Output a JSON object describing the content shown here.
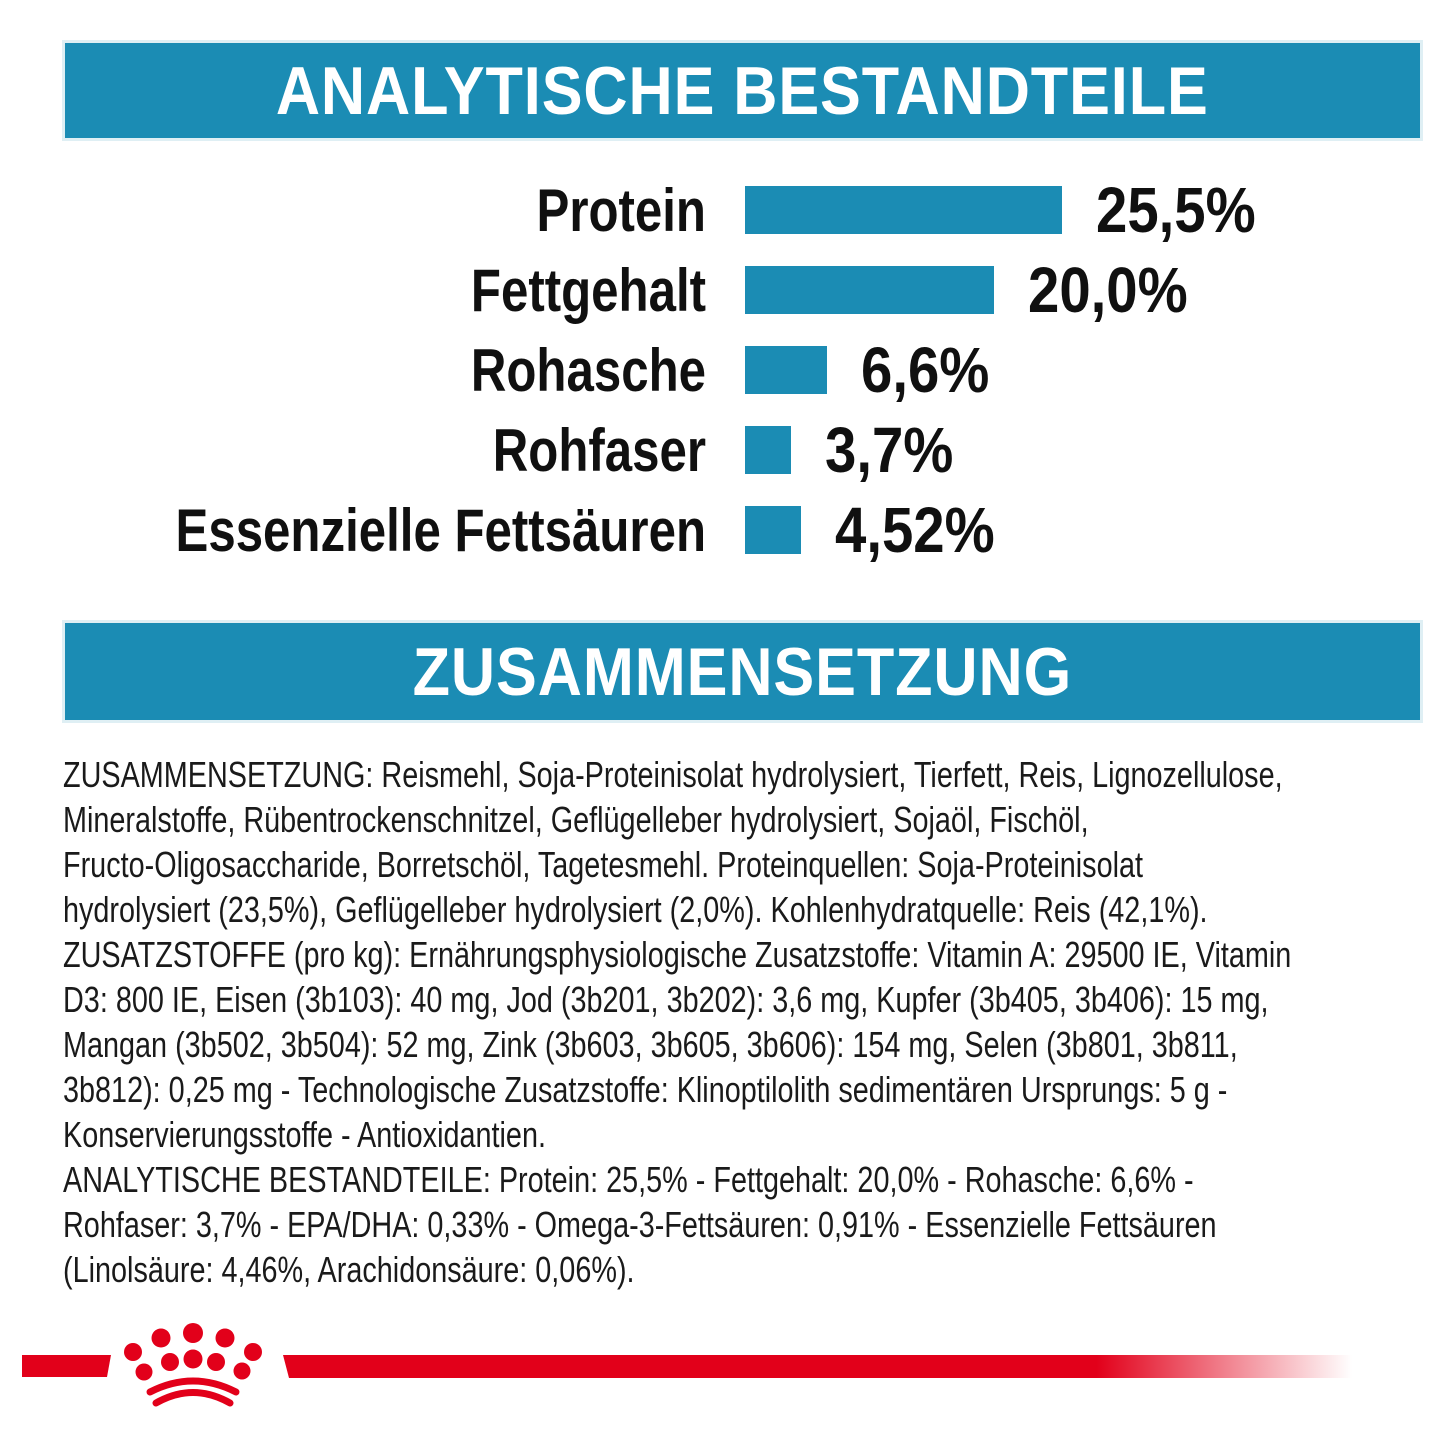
{
  "colors": {
    "teal": "#1b8cb4",
    "red": "#e2001a",
    "text": "#1a1a1a"
  },
  "banners": {
    "analytical": "ANALYTISCHE BESTANDTEILE",
    "composition": "ZUSAMMENSETZUNG"
  },
  "chart_data": {
    "type": "bar",
    "orientation": "horizontal",
    "title": "ANALYTISCHE BESTANDTEILE",
    "categories": [
      "Protein",
      "Fettgehalt",
      "Rohasche",
      "Rohfaser",
      "Essenzielle Fettsäuren"
    ],
    "values": [
      25.5,
      20.0,
      6.6,
      3.7,
      4.52
    ],
    "value_labels": [
      "25,5%",
      "20,0%",
      "6,6%",
      "3,7%",
      "4,52%"
    ],
    "unit": "%",
    "bar_color": "#1b8cb4",
    "axis": "none",
    "xlim": [
      0,
      30
    ],
    "grid": false,
    "legend": false
  },
  "composition_text": {
    "lines": [
      "ZUSAMMENSETZUNG: Reismehl, Soja-Proteinisolat hydrolysiert, Tierfett, Reis, Lignozellulose,",
      "Mineralstoffe, Rübentrockenschnitzel, Geflügelleber hydrolysiert, Sojaöl, Fischöl,",
      "Fructo-Oligosaccharide, Borretschöl, Tagetesmehl. Proteinquellen: Soja-Proteinisolat",
      "hydrolysiert (23,5%), Geflügelleber hydrolysiert (2,0%). Kohlenhydratquelle: Reis (42,1%).",
      "ZUSATZSTOFFE (pro kg): Ernährungsphysiologische Zusatzstoffe: Vitamin A: 29500 IE, Vitamin",
      "D3: 800 IE, Eisen (3b103): 40 mg, Jod (3b201, 3b202): 3,6 mg, Kupfer (3b405, 3b406): 15 mg,",
      "Mangan (3b502, 3b504): 52 mg, Zink (3b603, 3b605, 3b606): 154 mg, Selen (3b801, 3b811,",
      "3b812): 0,25 mg - Technologische Zusatzstoffe: Klinoptilolith sedimentären Ursprungs: 5 g -",
      "Konservierungsstoffe - Antioxidantien.",
      "ANALYTISCHE BESTANDTEILE: Protein: 25,5% - Fettgehalt: 20,0% - Rohasche: 6,6% -",
      "Rohfaser: 3,7% - EPA/DHA: 0,33% - Omega-3-Fettsäuren: 0,91% - Essenzielle Fettsäuren",
      "(Linolsäure: 4,46%, Arachidonsäure: 0,06%)."
    ]
  },
  "footer": {
    "logo_icon": "royal-canin-crown-icon"
  }
}
